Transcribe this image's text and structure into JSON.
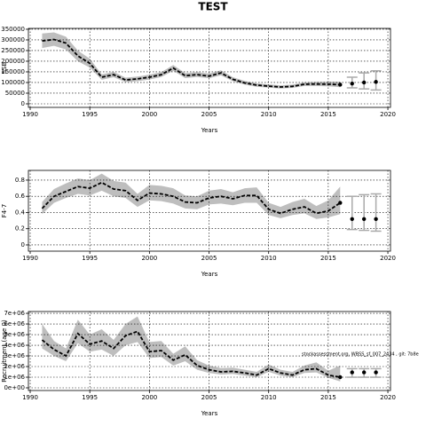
{
  "chart_data": [
    {
      "type": "line",
      "title": "TEST",
      "xlabel": "Years",
      "ylabel": "SSB",
      "x": [
        1991,
        1992,
        1993,
        1994,
        1995,
        1996,
        1997,
        1998,
        1999,
        2000,
        2001,
        2002,
        2003,
        2004,
        2005,
        2006,
        2007,
        2008,
        2009,
        2010,
        2011,
        2012,
        2013,
        2014,
        2015,
        2016
      ],
      "values": [
        295000,
        302000,
        285000,
        225000,
        190000,
        125000,
        137000,
        112000,
        117000,
        125000,
        137000,
        168000,
        132000,
        137000,
        130000,
        145000,
        115000,
        98000,
        88000,
        83000,
        79000,
        82000,
        92000,
        93000,
        92000,
        90000
      ],
      "lower": [
        262000,
        272000,
        255000,
        200000,
        170000,
        113000,
        125000,
        102000,
        106000,
        114000,
        126000,
        155000,
        121000,
        126000,
        120000,
        134000,
        106000,
        90000,
        80000,
        76000,
        72000,
        75000,
        84000,
        84000,
        82000,
        78000
      ],
      "upper": [
        330000,
        335000,
        315000,
        250000,
        212000,
        138000,
        150000,
        123000,
        128000,
        137000,
        149000,
        182000,
        144000,
        149000,
        142000,
        157000,
        125000,
        107000,
        96000,
        91000,
        87000,
        90000,
        101000,
        103000,
        104000,
        104000
      ],
      "forecast": {
        "x": [
          2017,
          2018,
          2019
        ],
        "values": [
          95000,
          100000,
          103000
        ],
        "lower": [
          75000,
          70000,
          65000
        ],
        "upper": [
          125000,
          145000,
          155000
        ]
      },
      "color": "#000000",
      "band_color": "#bebebe",
      "xlim": [
        1989.85,
        2020.22
      ],
      "xticks": [
        1990,
        1995,
        2000,
        2005,
        2010,
        2015,
        2020
      ],
      "ylim": [
        -16700,
        354000
      ],
      "yticks": [
        0,
        50000,
        100000,
        150000,
        200000,
        250000,
        300000,
        350000
      ],
      "grid": true
    },
    {
      "type": "line",
      "xlabel": "Years",
      "ylabel": "F4-7",
      "x": [
        1991,
        1992,
        1993,
        1994,
        1995,
        1996,
        1997,
        1998,
        1999,
        2000,
        2001,
        2002,
        2003,
        2004,
        2005,
        2006,
        2007,
        2008,
        2009,
        2010,
        2011,
        2012,
        2013,
        2014,
        2015,
        2016
      ],
      "values": [
        0.45,
        0.6,
        0.66,
        0.72,
        0.7,
        0.77,
        0.69,
        0.67,
        0.55,
        0.64,
        0.63,
        0.6,
        0.53,
        0.52,
        0.58,
        0.6,
        0.57,
        0.61,
        0.61,
        0.44,
        0.39,
        0.44,
        0.47,
        0.39,
        0.42,
        0.52
      ],
      "lower": [
        0.38,
        0.52,
        0.58,
        0.63,
        0.61,
        0.67,
        0.6,
        0.58,
        0.47,
        0.55,
        0.54,
        0.51,
        0.45,
        0.44,
        0.5,
        0.51,
        0.49,
        0.52,
        0.52,
        0.37,
        0.33,
        0.37,
        0.39,
        0.32,
        0.34,
        0.38
      ],
      "upper": [
        0.53,
        0.69,
        0.76,
        0.82,
        0.8,
        0.88,
        0.79,
        0.77,
        0.63,
        0.74,
        0.73,
        0.7,
        0.61,
        0.6,
        0.67,
        0.69,
        0.65,
        0.7,
        0.71,
        0.52,
        0.47,
        0.53,
        0.57,
        0.48,
        0.55,
        0.72
      ],
      "forecast": {
        "x": [
          2017,
          2018,
          2019
        ],
        "values": [
          0.32,
          0.32,
          0.32
        ],
        "lower": [
          0.19,
          0.18,
          0.17
        ],
        "upper": [
          0.6,
          0.62,
          0.63
        ]
      },
      "color": "#000000",
      "band_color": "#bebebe",
      "xlim": [
        1989.85,
        2020.22
      ],
      "xticks": [
        1990,
        1995,
        2000,
        2005,
        2010,
        2015,
        2020
      ],
      "ylim": [
        -0.077,
        0.92
      ],
      "yticks": [
        0,
        0.2,
        0.4,
        0.6,
        0.8
      ],
      "grid": true
    },
    {
      "type": "line",
      "xlabel": "Years",
      "ylabel": "Recruitment (age 0)",
      "annotation": "stockassessment.org, WBSS_sf_007_2434 , git: 7b8e",
      "x": [
        1991,
        1992,
        1993,
        1994,
        1995,
        1996,
        1997,
        1998,
        1999,
        2000,
        2001,
        2002,
        2003,
        2004,
        2005,
        2006,
        2007,
        2008,
        2009,
        2010,
        2011,
        2012,
        2013,
        2014,
        2015,
        2016
      ],
      "values": [
        4500000,
        3600000,
        3000000,
        5100000,
        4100000,
        4400000,
        3700000,
        4900000,
        5300000,
        3400000,
        3500000,
        2600000,
        3100000,
        2100000,
        1700000,
        1500000,
        1550000,
        1400000,
        1200000,
        1800000,
        1400000,
        1200000,
        1700000,
        1800000,
        1200000,
        1000000
      ],
      "lower": [
        3700000,
        3000000,
        2500000,
        4200000,
        3400000,
        3600000,
        3000000,
        4000000,
        4300000,
        2800000,
        2900000,
        2100000,
        2500000,
        1700000,
        1400000,
        1250000,
        1300000,
        1150000,
        1000000,
        1500000,
        1150000,
        1000000,
        1400000,
        1450000,
        950000,
        600000
      ],
      "upper": [
        6000000,
        4400000,
        3700000,
        6400000,
        5000000,
        5500000,
        4500000,
        6000000,
        6700000,
        4300000,
        4400000,
        3200000,
        3900000,
        2600000,
        2100000,
        1850000,
        1900000,
        1700000,
        1500000,
        2200000,
        1700000,
        1500000,
        2100000,
        2400000,
        1600000,
        2100000
      ],
      "forecast": {
        "x": [
          2017,
          2018,
          2019
        ],
        "values": [
          1450000,
          1450000,
          1450000
        ],
        "lower": [
          1000000,
          1000000,
          1000000
        ],
        "upper": [
          1800000,
          1800000,
          1800000
        ]
      },
      "color": "#000000",
      "band_color": "#bebebe",
      "xlim": [
        1989.85,
        2020.22
      ],
      "xticks": [
        1990,
        1995,
        2000,
        2005,
        2010,
        2015,
        2020
      ],
      "ylim": [
        -250000,
        7170000
      ],
      "yticks": [
        {
          "value": 0,
          "label": "0e+00"
        },
        {
          "value": 1000000,
          "label": "1e+06"
        },
        {
          "value": 2000000,
          "label": "2e+06"
        },
        {
          "value": 3000000,
          "label": "3e+06"
        },
        {
          "value": 4000000,
          "label": "4e+06"
        },
        {
          "value": 5000000,
          "label": "5e+06"
        },
        {
          "value": 6000000,
          "label": "6e+06"
        },
        {
          "value": 7000000,
          "label": "7e+06"
        }
      ],
      "grid": true
    }
  ]
}
